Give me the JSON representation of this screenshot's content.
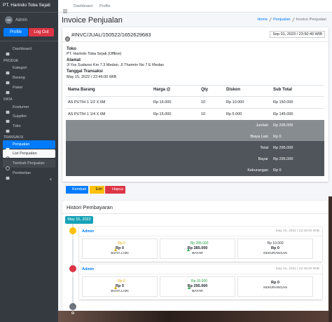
{
  "sidebar": {
    "brand": "PT. Harindo Toba Sejati",
    "avatar": "AD",
    "user": "Admin",
    "profile_button": "Profile",
    "logout_button": "Log Out",
    "menu_headers": [
      "PRODUK",
      "DATA",
      "TRANSAKSI"
    ],
    "menu_items": [
      "Dashboard",
      "Kategori",
      "Barang",
      "Paket",
      "Kostumer",
      "Supplier",
      "Toko",
      "Penjualan",
      "List Penjualan",
      "Tambah Penjualan",
      "Pembelian"
    ]
  },
  "topnav": {
    "links": [
      "Dashboard",
      "Profile"
    ]
  },
  "page": {
    "title": "Invoice Penjualan",
    "breadcrumb": [
      "Home",
      "Penjualan",
      "Invoice Penjualan"
    ]
  },
  "invoice": {
    "number": "#INVC/JUAL/150522/1652629683",
    "date": "Sep 01, 2023 / 23:50:49 WIB",
    "fields": [
      {
        "label": "Toko",
        "value": "PT. Harindo Toba Sejati (Offline)"
      },
      {
        "label": "Alamat",
        "value": "Jl Yos Sudarso Km 7.3 Medan, Jl Thamrin No 7 E Medan"
      },
      {
        "label": "Tanggal Transaksi",
        "value": "May 15, 2022 / 22:46:00 WIB"
      }
    ],
    "table": {
      "header": [
        "Nama Barang",
        "Harga @",
        "Qty",
        "Diskon",
        "Sub Total"
      ],
      "rows": [
        [
          "AS PUTIH 1 1/2 X 6M",
          "Rp 16.000",
          "10",
          "Rp 10.000",
          "Rp 150.000"
        ],
        [
          "AS PUTIH 1 1/4 X 6M",
          "Rp 15.000",
          "10",
          "Rp 5.000",
          "Rp 145.000"
        ]
      ],
      "summary": [
        {
          "label": "Jumlah",
          "value": "Rp 295.000"
        },
        {
          "label": "Biaya Lain",
          "value": "Rp 0"
        },
        {
          "label": "Total",
          "value": "Rp 295.000"
        },
        {
          "label": "Bayar",
          "value": "Rp 295.000"
        },
        {
          "label": "Kekurangan",
          "value": "Rp 0"
        }
      ]
    },
    "buttons": [
      "Kembali",
      "Edit",
      "Hapus"
    ]
  },
  "history": {
    "title": "Histori Pembayaran",
    "date_badge": "May 15, 2022",
    "entries": [
      {
        "user": "Admin",
        "time": "May 15, 2022 / 22:46:00 WIB",
        "stats": [
          {
            "change": "Rp 0",
            "value": "Rp 0",
            "label": "BIAYA LAIN"
          },
          {
            "change": "Rp 285.000",
            "value": "Rp 285.000",
            "label": "BAYAR"
          },
          {
            "change": "Rp 10.000",
            "value": "Rp 0",
            "label": "KEKURANGAN"
          }
        ]
      },
      {
        "user": "Admin",
        "time": "May 15, 2022 / 22:46:00 WIB",
        "stats": [
          {
            "change": "Rp 0",
            "value": "Rp 0",
            "label": "BIAYA LAIN"
          },
          {
            "change": "Rp 10.000",
            "value": "Rp 295.000",
            "label": "BAYAR"
          },
          {
            "value": "Rp 0",
            "label": "KEKURANGAN"
          }
        ]
      }
    ]
  }
}
